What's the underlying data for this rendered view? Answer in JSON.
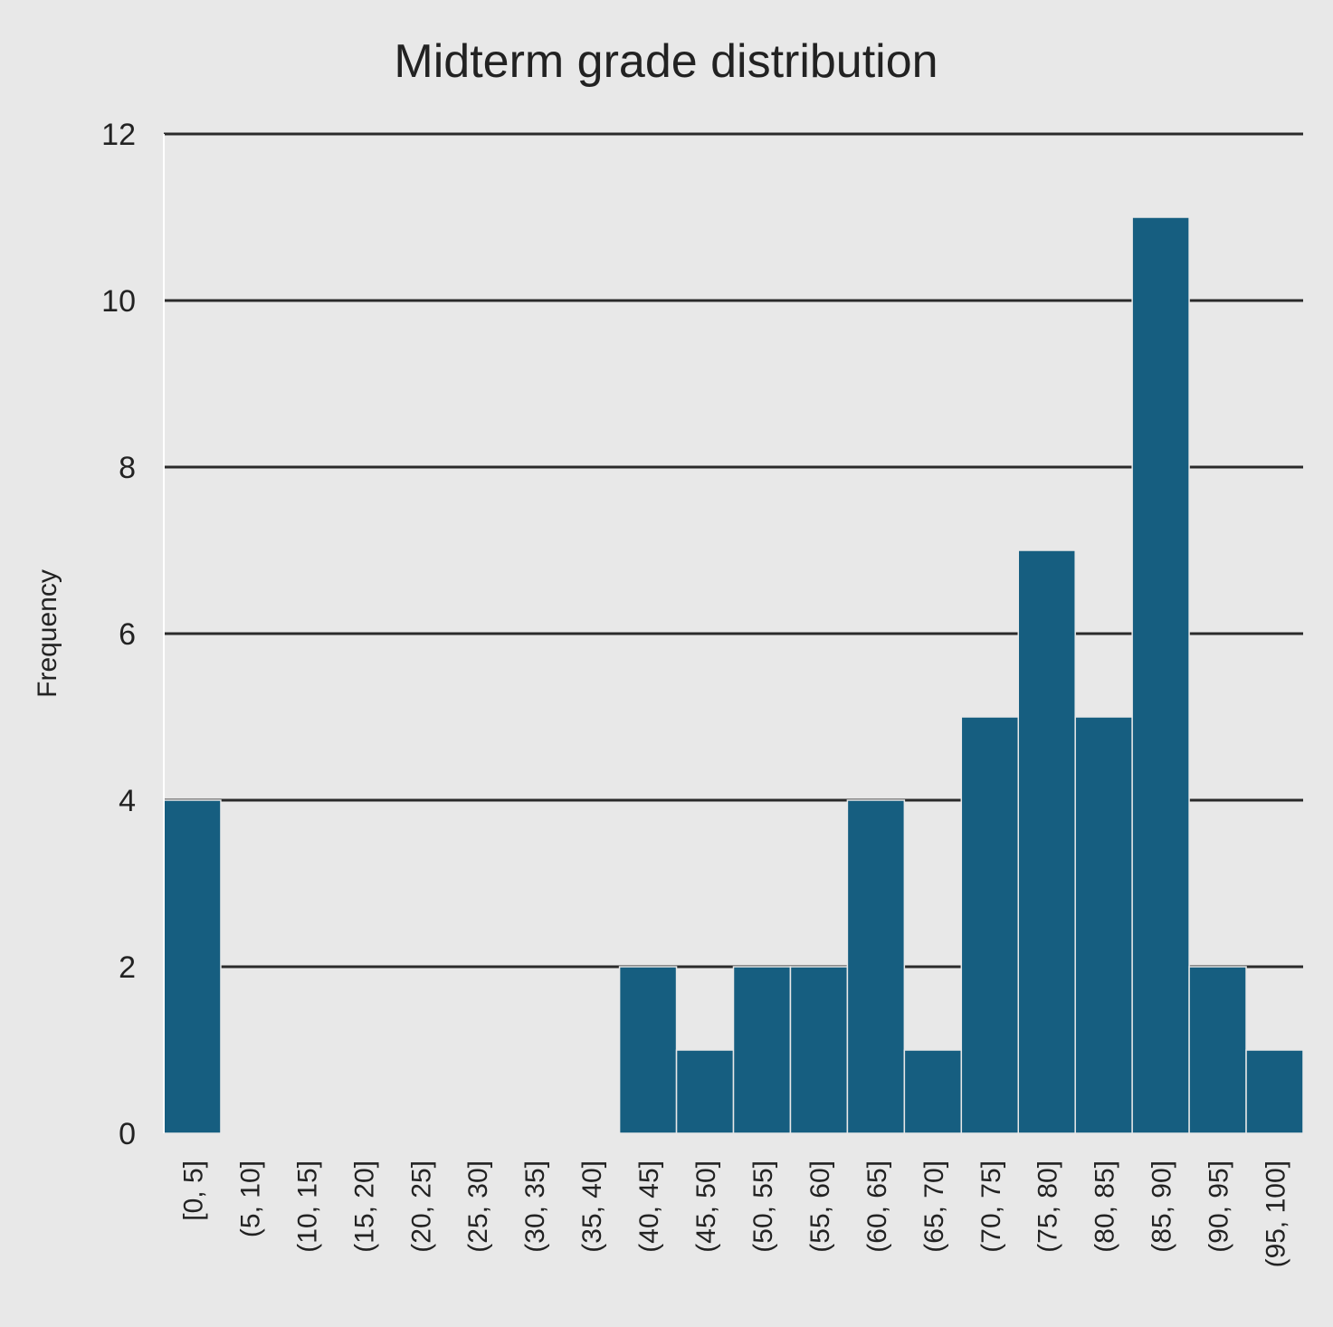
{
  "chart_data": {
    "type": "bar",
    "title": "Midterm grade distribution",
    "xlabel": "",
    "ylabel": "Frequency",
    "ylim": [
      0,
      12
    ],
    "yticks": [
      0,
      2,
      4,
      6,
      8,
      10,
      12
    ],
    "grid": true,
    "categories": [
      "[0, 5]",
      "(5, 10]",
      "(10, 15]",
      "(15, 20]",
      "(20, 25]",
      "(25, 30]",
      "(30, 35]",
      "(35, 40]",
      "(40, 45]",
      "(45, 50]",
      "(50, 55]",
      "(55, 60]",
      "(60, 65]",
      "(65, 70]",
      "(70, 75]",
      "(75, 80]",
      "(80, 85]",
      "(85, 90]",
      "(90, 95]",
      "(95, 100]"
    ],
    "values": [
      4,
      0,
      0,
      0,
      0,
      0,
      0,
      0,
      2,
      1,
      2,
      2,
      4,
      1,
      5,
      7,
      5,
      11,
      2,
      1
    ],
    "bar_color": "#165e80"
  }
}
